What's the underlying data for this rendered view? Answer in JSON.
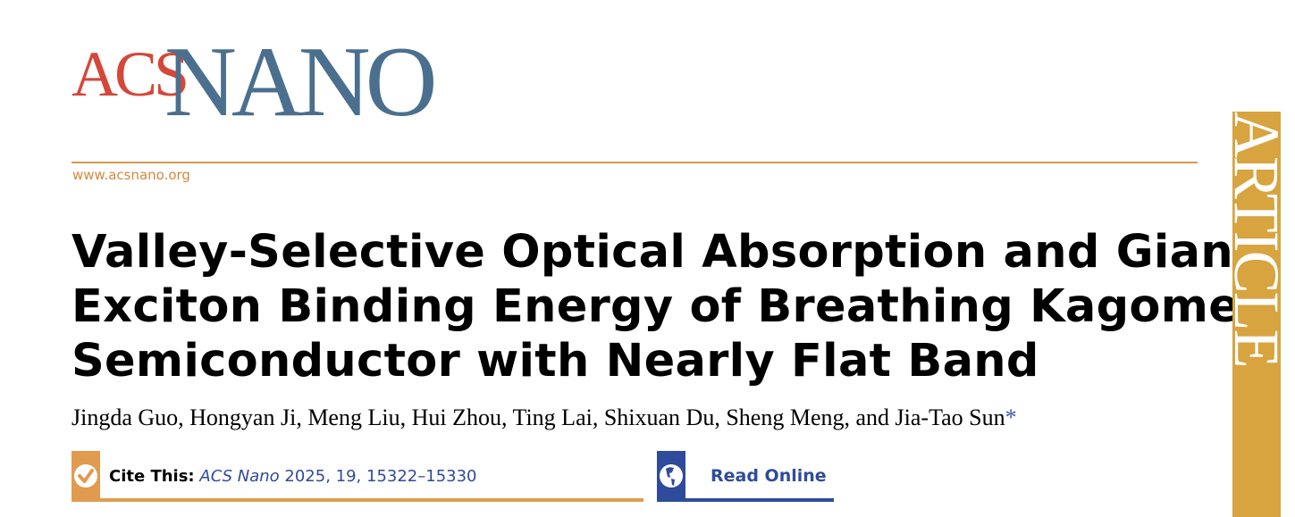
{
  "journal": {
    "logo_part1": "ACS",
    "logo_part2": "NANO",
    "url": "www.acsnano.org",
    "section_label": "ARTICLE",
    "colors": {
      "acs_red": "#d4483a",
      "nano_blue": "#4b6f8e",
      "accent_orange": "#e19b4f",
      "article_gold": "#d7a440",
      "link_blue": "#2f4b9b"
    }
  },
  "article": {
    "title_lines": [
      "Valley-Selective Optical Absorption and Giant",
      "Exciton Binding Energy of Breathing Kagome",
      "Semiconductor with Nearly Flat Band"
    ],
    "authors": "Jingda Guo, Hongyan Ji, Meng Liu, Hui Zhou, Ting Lai, Shixuan Du, Sheng Meng, and Jia-Tao Sun",
    "corresponding_mark": "*"
  },
  "cite": {
    "label": "Cite This:",
    "journal": "ACS Nano",
    "details": "2025, 19, 15322–15330",
    "icon": "checkmark-icon"
  },
  "read_online": {
    "label": "Read Online",
    "icon": "globe-icon"
  }
}
